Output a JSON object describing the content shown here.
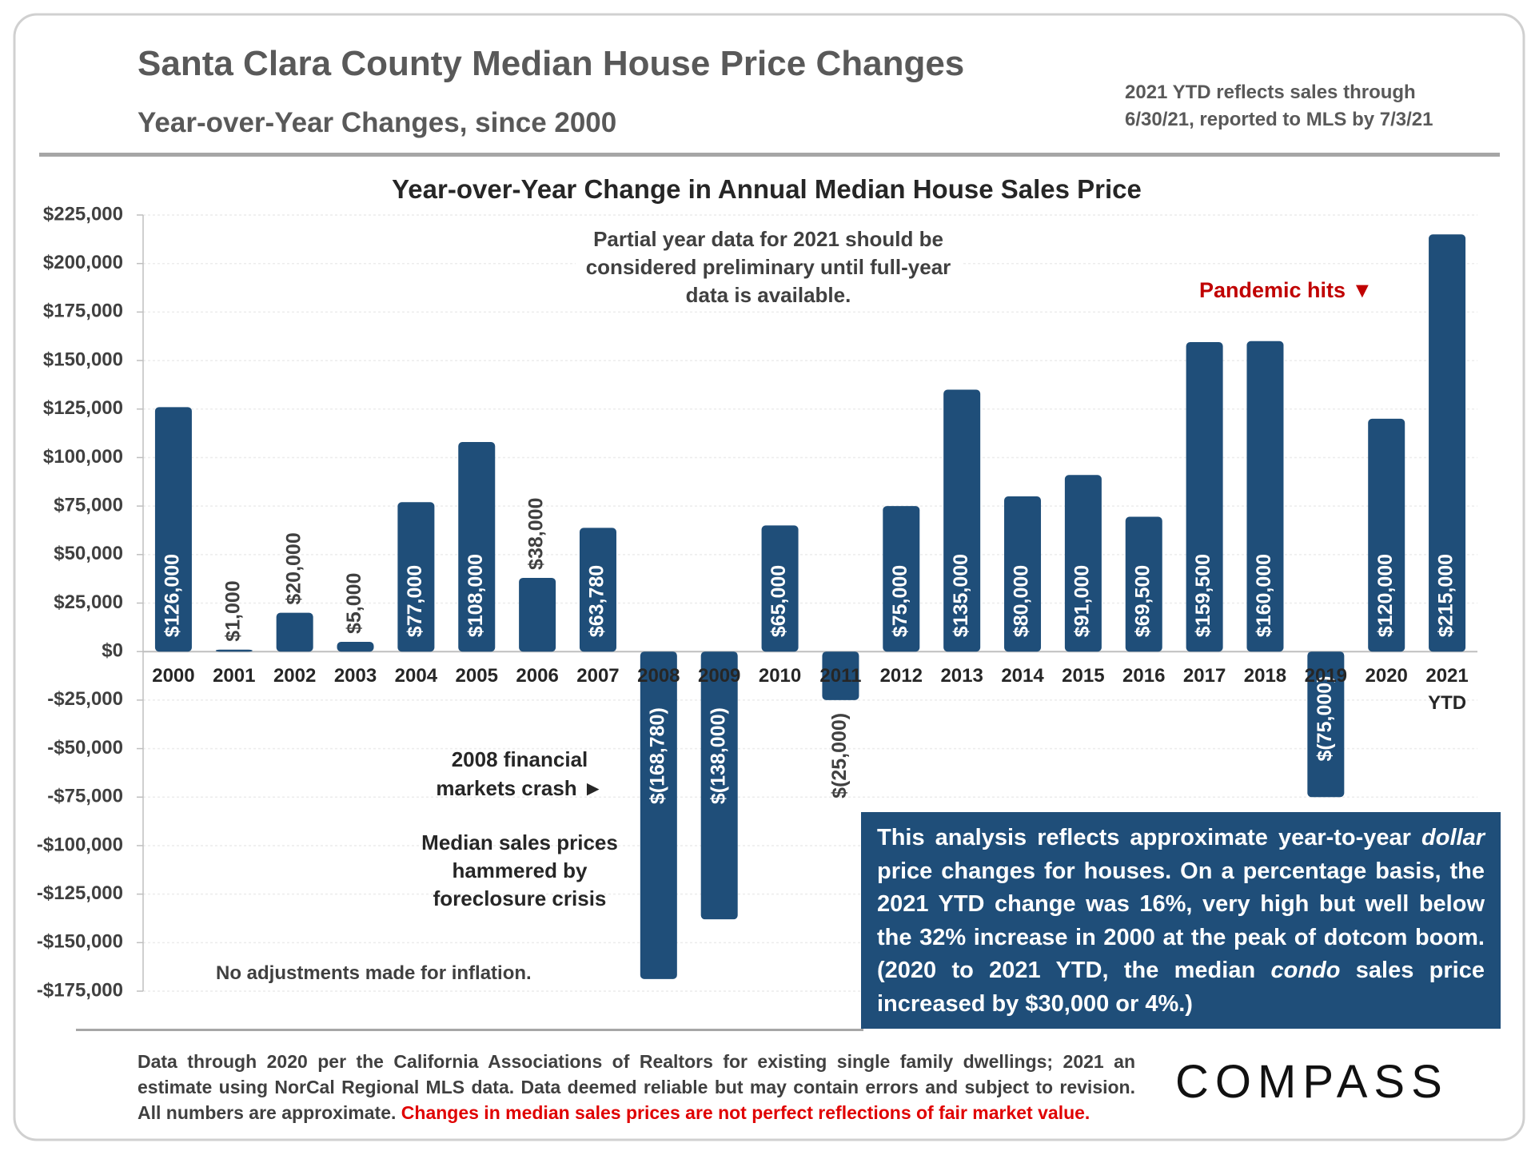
{
  "header": {
    "title": "Santa Clara County Median House Price Changes",
    "subtitle": "Year-over-Year Changes, since 2000",
    "note_lines": [
      "2021 YTD reflects sales through",
      "6/30/21, reported to MLS by 7/3/21"
    ]
  },
  "chart_data": {
    "type": "bar",
    "title": "Year-over-Year Change in Annual Median House Sales Price",
    "categories": [
      "2000",
      "2001",
      "2002",
      "2003",
      "2004",
      "2005",
      "2006",
      "2007",
      "2008",
      "2009",
      "2010",
      "2011",
      "2012",
      "2013",
      "2014",
      "2015",
      "2016",
      "2017",
      "2018",
      "2019",
      "2020",
      "2021 YTD"
    ],
    "values": [
      126000,
      1000,
      20000,
      5000,
      77000,
      108000,
      38000,
      63780,
      -168780,
      -138000,
      65000,
      -25000,
      75000,
      135000,
      80000,
      91000,
      69500,
      159500,
      160000,
      -75000,
      120000,
      215000
    ],
    "value_labels": [
      "$126,000",
      "$1,000",
      "$20,000",
      "$5,000",
      "$77,000",
      "$108,000",
      "$38,000",
      "$63,780",
      "$(168,780)",
      "$(138,000)",
      "$65,000",
      "$(25,000)",
      "$75,000",
      "$135,000",
      "$80,000",
      "$91,000",
      "$69,500",
      "$159,500",
      "$160,000",
      "$(75,000)",
      "$120,000",
      "$215,000"
    ],
    "color": "#1f4e79",
    "ylim": [
      -175000,
      225000
    ],
    "yticks": [
      {
        "value": 225000,
        "label": "$225,000"
      },
      {
        "value": 200000,
        "label": "$200,000"
      },
      {
        "value": 175000,
        "label": "$175,000"
      },
      {
        "value": 150000,
        "label": "$150,000"
      },
      {
        "value": 125000,
        "label": "$125,000"
      },
      {
        "value": 100000,
        "label": "$100,000"
      },
      {
        "value": 75000,
        "label": "$75,000"
      },
      {
        "value": 50000,
        "label": "$50,000"
      },
      {
        "value": 25000,
        "label": "$25,000"
      },
      {
        "value": 0,
        "label": "$0"
      },
      {
        "value": -25000,
        "label": "-$25,000"
      },
      {
        "value": -50000,
        "label": "-$50,000"
      },
      {
        "value": -75000,
        "label": "-$75,000"
      },
      {
        "value": -100000,
        "label": "-$100,000"
      },
      {
        "value": -125000,
        "label": "-$125,000"
      },
      {
        "value": -150000,
        "label": "-$150,000"
      },
      {
        "value": -175000,
        "label": "-$175,000"
      }
    ],
    "grid": true,
    "annotations": {
      "partial_year": "Partial year data for 2021 should be considered preliminary until full-year data is available.",
      "pandemic": "Pandemic hits ▼",
      "crash": "2008 financial markets crash ►",
      "foreclosure": "Median sales prices hammered by foreclosure crisis",
      "inflation": "No adjustments made for inflation."
    }
  },
  "analysis_box": {
    "segments": [
      {
        "text": "This analysis reflects approximate year-to-year "
      },
      {
        "text": "dollar",
        "italic": true
      },
      {
        "text": " price changes for houses. On a percentage basis, the 2021 YTD change was 16%, very high but well below the 32% increase in 2000 at the peak of dotcom boom. (2020 to 2021 YTD, the median "
      },
      {
        "text": "condo",
        "italic": true
      },
      {
        "text": " sales price increased by $30,000 or 4%.)"
      }
    ]
  },
  "footer": {
    "segments": [
      {
        "text": "Data through 2020 per the California Associations of Realtors for existing single family dwellings; 2021 an estimate using NorCal Regional MLS data. Data deemed reliable but may contain errors and subject to revision. All numbers are approximate. "
      },
      {
        "text": "Changes in median sales prices are not perfect reflections of fair market value.",
        "color": "#e00000"
      }
    ],
    "logo": "COMPASS"
  }
}
